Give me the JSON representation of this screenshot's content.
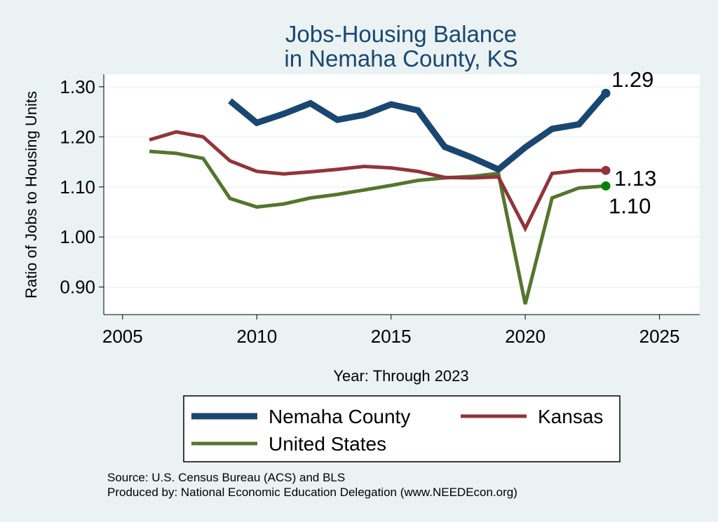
{
  "chart_data": {
    "type": "line",
    "title": [
      "Jobs-Housing Balance",
      "in Nemaha County, KS"
    ],
    "xlabel": "Year: Through 2023",
    "ylabel": "Ratio of Jobs to Housing Units",
    "xlim": [
      2004.3,
      2026.5
    ],
    "ylim": [
      0.845,
      1.325
    ],
    "xticks": [
      2005,
      2010,
      2015,
      2020,
      2025
    ],
    "yticks": [
      0.9,
      1.0,
      1.1,
      1.2,
      1.3
    ],
    "ytick_labels": [
      "0.90",
      "1.00",
      "1.10",
      "1.20",
      "1.30"
    ],
    "grid": true,
    "series": [
      {
        "name": "Nemaha County",
        "color": "#1A476F",
        "x": [
          2009,
          2010,
          2011,
          2012,
          2013,
          2014,
          2015,
          2016,
          2017,
          2018,
          2019,
          2020,
          2021,
          2022,
          2023
        ],
        "values": [
          1.272,
          1.228,
          1.246,
          1.267,
          1.234,
          1.244,
          1.265,
          1.253,
          1.18,
          1.159,
          1.135,
          1.179,
          1.216,
          1.225,
          1.287
        ],
        "end_label": "1.29"
      },
      {
        "name": "Kansas",
        "color": "#90353B",
        "x": [
          2006,
          2007,
          2008,
          2009,
          2010,
          2011,
          2012,
          2013,
          2014,
          2015,
          2016,
          2017,
          2018,
          2019,
          2020,
          2021,
          2022,
          2023
        ],
        "values": [
          1.194,
          1.21,
          1.2,
          1.152,
          1.131,
          1.126,
          1.13,
          1.135,
          1.141,
          1.138,
          1.131,
          1.119,
          1.118,
          1.12,
          1.017,
          1.127,
          1.133,
          1.133
        ],
        "end_label": "1.13"
      },
      {
        "name": "United States",
        "color": "#55752F",
        "marker_color": "#008000",
        "x": [
          2006,
          2007,
          2008,
          2009,
          2010,
          2011,
          2012,
          2013,
          2014,
          2015,
          2016,
          2017,
          2018,
          2019,
          2020,
          2021,
          2022,
          2023
        ],
        "values": [
          1.171,
          1.167,
          1.157,
          1.077,
          1.06,
          1.066,
          1.078,
          1.085,
          1.094,
          1.103,
          1.113,
          1.118,
          1.121,
          1.127,
          0.866,
          1.078,
          1.098,
          1.102
        ],
        "end_label": "1.10"
      }
    ],
    "legend": [
      "Nemaha County",
      "Kansas",
      "United States"
    ],
    "notes": [
      "Source: U.S. Census Bureau (ACS) and BLS",
      "Produced by: National Economic Education Delegation (www.NEEDEcon.org)"
    ]
  },
  "colors": {
    "background": "#EAF2F3",
    "plot_background": "#FFFFFF",
    "grid": "#EAF2F3"
  }
}
